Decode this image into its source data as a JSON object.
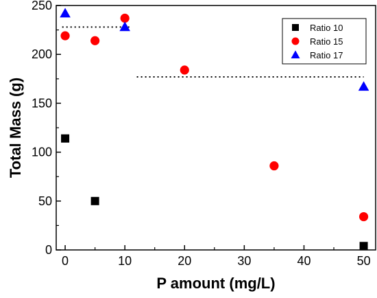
{
  "chart_data": {
    "type": "scatter",
    "xlabel": "P amount (mg/L)",
    "ylabel": "Total Mass (g)",
    "xlim": [
      -1.5,
      52
    ],
    "ylim": [
      0,
      250
    ],
    "x_ticks": [
      0,
      10,
      20,
      30,
      40,
      50
    ],
    "y_ticks": [
      0,
      50,
      100,
      150,
      200,
      250
    ],
    "grid": false,
    "legend_position": "top-right",
    "series": [
      {
        "name": "Ratio 10",
        "marker": "square",
        "color": "#000000",
        "x": [
          0,
          5,
          50
        ],
        "y": [
          114,
          50,
          4
        ]
      },
      {
        "name": "Ratio 15",
        "marker": "circle",
        "color": "#ff0000",
        "x": [
          0,
          5,
          10,
          20,
          35,
          50
        ],
        "y": [
          219,
          214,
          237,
          184,
          86,
          34
        ]
      },
      {
        "name": "Ratio 17",
        "marker": "triangle",
        "color": "#0000ff",
        "x": [
          0,
          10,
          50
        ],
        "y": [
          242,
          228,
          167
        ]
      }
    ],
    "reference_lines": [
      {
        "style": "dotted",
        "color": "#000000",
        "x": [
          -0.5,
          11
        ],
        "y": 228
      },
      {
        "style": "dotted",
        "color": "#000000",
        "x": [
          12,
          50
        ],
        "y": 177
      }
    ]
  }
}
